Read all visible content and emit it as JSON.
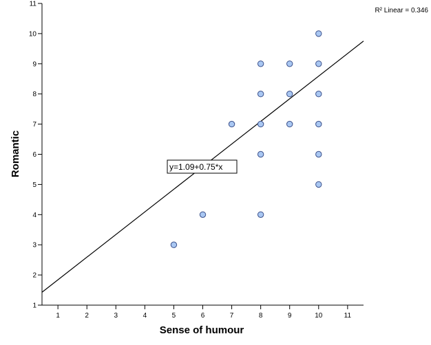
{
  "chart_data": {
    "type": "scatter",
    "xlabel": "Sense of humour",
    "ylabel": "Romantic",
    "xlim": [
      0.45,
      11.55
    ],
    "ylim": [
      1,
      11
    ],
    "xticks": [
      1,
      2,
      3,
      4,
      5,
      6,
      7,
      8,
      9,
      10,
      11
    ],
    "yticks": [
      1,
      2,
      3,
      4,
      5,
      6,
      7,
      8,
      9,
      10,
      11
    ],
    "grid": false,
    "point_color": "#a9c7f2",
    "point_stroke": "#3a4f8a",
    "points": [
      {
        "x": 5,
        "y": 3
      },
      {
        "x": 6,
        "y": 4
      },
      {
        "x": 7,
        "y": 7
      },
      {
        "x": 8,
        "y": 4
      },
      {
        "x": 8,
        "y": 6
      },
      {
        "x": 8,
        "y": 7
      },
      {
        "x": 8,
        "y": 8
      },
      {
        "x": 8,
        "y": 9
      },
      {
        "x": 9,
        "y": 7
      },
      {
        "x": 9,
        "y": 8
      },
      {
        "x": 9,
        "y": 9
      },
      {
        "x": 10,
        "y": 5
      },
      {
        "x": 10,
        "y": 6
      },
      {
        "x": 10,
        "y": 7
      },
      {
        "x": 10,
        "y": 8
      },
      {
        "x": 10,
        "y": 9
      },
      {
        "x": 10,
        "y": 10
      }
    ],
    "fit_line": {
      "intercept": 1.09,
      "slope": 0.75,
      "label": "y=1.09+0.75*x",
      "r2_label": "R² Linear = 0.346"
    }
  }
}
